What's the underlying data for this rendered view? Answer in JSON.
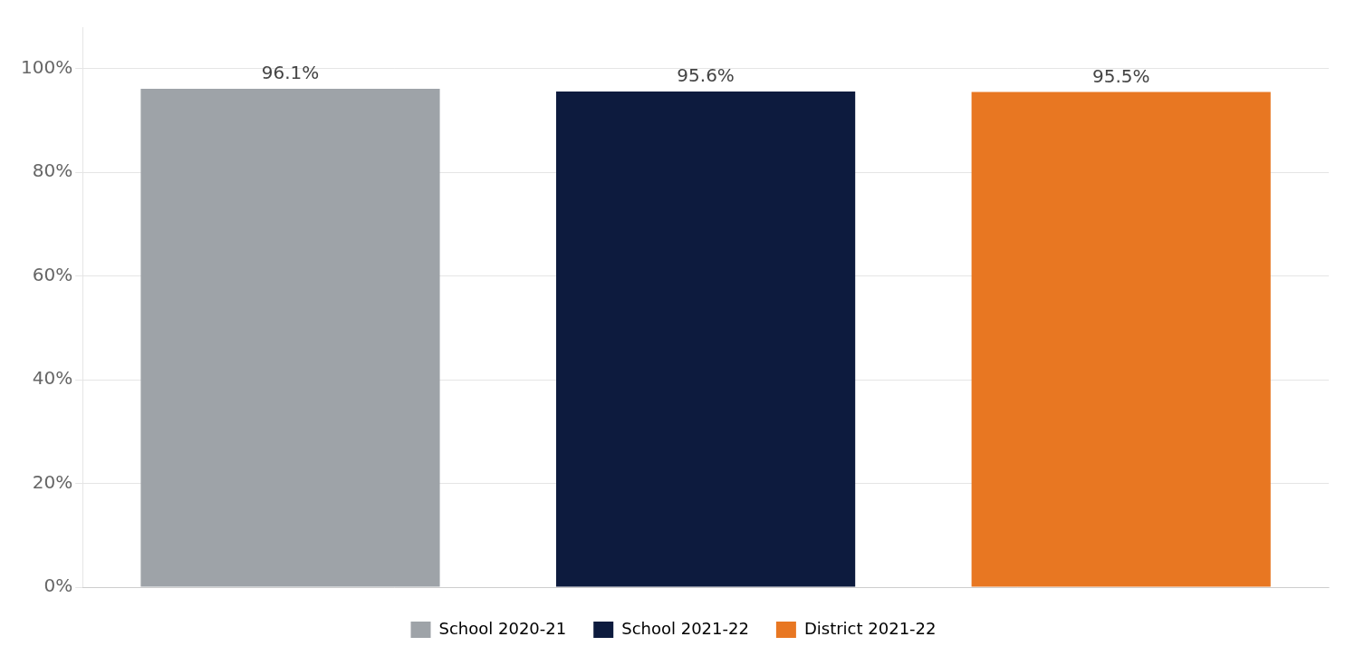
{
  "chart_data": {
    "type": "bar",
    "categories": [
      "School 2020-21",
      "School 2021-22",
      "District 2021-22"
    ],
    "values": [
      96.1,
      95.6,
      95.5
    ],
    "value_labels": [
      "96.1%",
      "95.6%",
      "95.5%"
    ],
    "colors": [
      "#9EA3A8",
      "#0D1B3E",
      "#E87722"
    ],
    "ylim": [
      0,
      108
    ],
    "yticks": [
      {
        "value": 0,
        "label": "0%"
      },
      {
        "value": 20,
        "label": "20%"
      },
      {
        "value": 40,
        "label": "40%"
      },
      {
        "value": 60,
        "label": "60%"
      },
      {
        "value": 80,
        "label": "80%"
      },
      {
        "value": 100,
        "label": "100%"
      }
    ],
    "grid": true,
    "legend": "bottom",
    "data_labels": true,
    "tick_labels": "y"
  }
}
